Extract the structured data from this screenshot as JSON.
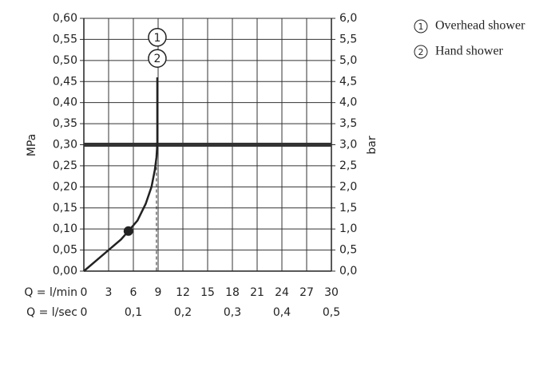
{
  "chart_data": {
    "type": "line",
    "xlabel": "Q = l/min",
    "x2label": "Q = l/sec",
    "ylabel": "MPa",
    "y2label": "bar",
    "xlim": [
      0,
      30
    ],
    "xticks": [
      0,
      3,
      6,
      9,
      12,
      15,
      18,
      21,
      24,
      27,
      30
    ],
    "x2lim": [
      0,
      0.5
    ],
    "x2ticks": [
      0,
      {
        "value": 0.1,
        "label": "0,1"
      },
      {
        "value": 0.2,
        "label": "0,2"
      },
      {
        "value": 0.3,
        "label": "0,3"
      },
      {
        "value": 0.4,
        "label": "0,4"
      },
      {
        "value": 0.5,
        "label": "0,5"
      }
    ],
    "ylim": [
      0,
      0.6
    ],
    "yticks": [
      {
        "value": 0,
        "label": "0,00"
      },
      {
        "value": 0.05,
        "label": "0,05"
      },
      {
        "value": 0.1,
        "label": "0,10"
      },
      {
        "value": 0.15,
        "label": "0,15"
      },
      {
        "value": 0.2,
        "label": "0,20"
      },
      {
        "value": 0.25,
        "label": "0,25"
      },
      {
        "value": 0.3,
        "label": "0,30"
      },
      {
        "value": 0.35,
        "label": "0,35"
      },
      {
        "value": 0.4,
        "label": "0,40"
      },
      {
        "value": 0.45,
        "label": "0,45"
      },
      {
        "value": 0.5,
        "label": "0,50"
      },
      {
        "value": 0.55,
        "label": "0,55"
      },
      {
        "value": 0.6,
        "label": "0,60"
      }
    ],
    "y2lim": [
      0,
      6
    ],
    "y2ticks": [
      {
        "value": 0,
        "label": "0,0"
      },
      {
        "value": 0.5,
        "label": "0,5"
      },
      {
        "value": 1,
        "label": "1,0"
      },
      {
        "value": 1.5,
        "label": "1,5"
      },
      {
        "value": 2,
        "label": "2,0"
      },
      {
        "value": 2.5,
        "label": "2,5"
      },
      {
        "value": 3,
        "label": "3,0"
      },
      {
        "value": 3.5,
        "label": "3,5"
      },
      {
        "value": 4,
        "label": "4,0"
      },
      {
        "value": 4.5,
        "label": "4,5"
      },
      {
        "value": 5,
        "label": "5,0"
      },
      {
        "value": 5.5,
        "label": "5,5"
      },
      {
        "value": 6,
        "label": "6,0"
      }
    ],
    "grid": true,
    "series": [
      {
        "color": "#222222",
        "x": [
          0,
          1.5,
          3,
          4.5,
          5.4,
          6.5,
          7.5,
          8.2,
          8.6,
          8.8,
          8.9,
          8.9
        ],
        "values": [
          0,
          0.025,
          0.05,
          0.075,
          0.095,
          0.12,
          0.16,
          0.2,
          0.24,
          0.27,
          0.3,
          0.46
        ]
      }
    ],
    "markers": [
      {
        "x": 5.4,
        "y": 0.095
      }
    ],
    "threshold": 0.3,
    "threshold_color": "#333333",
    "dashed_x": 8.8,
    "annotations": [
      {
        "label": "1",
        "x": 8.9,
        "y": 0.555
      },
      {
        "label": "2",
        "x": 8.9,
        "y": 0.505
      }
    ],
    "legend": [
      {
        "marker": "1",
        "label": "Overhead shower"
      },
      {
        "marker": "2",
        "label": "Hand shower"
      }
    ]
  }
}
